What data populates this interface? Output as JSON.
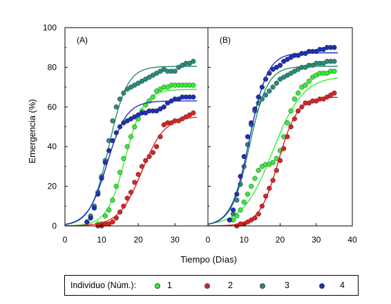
{
  "chart_data": {
    "type": "scatter",
    "xlabel": "Tiempo (Días)",
    "ylabel": "Emergencia (%)",
    "xlim": [
      0,
      40
    ],
    "ylim": [
      0,
      100
    ],
    "xticks": [
      0,
      10,
      20,
      30,
      40
    ],
    "yticks": [
      0,
      20,
      40,
      60,
      80,
      100
    ],
    "grid": false,
    "panels": [
      {
        "label": "(A)",
        "series": [
          {
            "name": "1",
            "color": "#33ee33",
            "x": [
              9,
              10,
              11,
              12,
              13,
              14,
              15,
              16,
              17,
              18,
              19,
              20,
              21,
              22,
              23,
              24,
              25,
              26,
              27,
              28,
              29,
              30,
              31,
              32,
              33,
              34,
              35
            ],
            "y": [
              1,
              1,
              5,
              8,
              13,
              20,
              27,
              34,
              40,
              45,
              50,
              54,
              58,
              61,
              63,
              65,
              68,
              69,
              70,
              70,
              71,
              71,
              71,
              71,
              71,
              71,
              71
            ]
          },
          {
            "name": "2",
            "color": "#dd2222",
            "x": [
              9,
              10,
              11,
              12,
              13,
              14,
              15,
              16,
              17,
              18,
              19,
              20,
              21,
              22,
              23,
              24,
              25,
              26,
              27,
              28,
              29,
              30,
              31,
              32,
              33,
              34,
              35
            ],
            "y": [
              0,
              0,
              1,
              1,
              2,
              4,
              7,
              10,
              14,
              17,
              22,
              26,
              30,
              33,
              35,
              37,
              40,
              45,
              51,
              52,
              52,
              53,
              53,
              54,
              55,
              56,
              57
            ]
          },
          {
            "name": "3",
            "color": "#2a8a7a",
            "x": [
              6,
              7,
              8,
              9,
              10,
              11,
              12,
              13,
              14,
              15,
              16,
              17,
              18,
              19,
              20,
              21,
              22,
              23,
              24,
              25,
              26,
              27,
              28,
              29,
              30,
              31,
              32,
              33,
              34,
              35
            ],
            "y": [
              2,
              5,
              10,
              17,
              25,
              33,
              43,
              53,
              60,
              64,
              67,
              69,
              70,
              71,
              72,
              73,
              74,
              75,
              76,
              77,
              78,
              79,
              78,
              78,
              78,
              80,
              81,
              82,
              82,
              83
            ]
          },
          {
            "name": "4",
            "color": "#1c2fb8",
            "x": [
              6,
              7,
              8,
              9,
              10,
              11,
              12,
              13,
              14,
              15,
              16,
              17,
              18,
              19,
              20,
              21,
              22,
              23,
              24,
              25,
              26,
              27,
              28,
              29,
              30,
              31,
              32,
              33,
              34,
              35
            ],
            "y": [
              2,
              4,
              9,
              16,
              24,
              32,
              38,
              43,
              47,
              50,
              52,
              53,
              54,
              55,
              56,
              57,
              57,
              58,
              58,
              58,
              59,
              60,
              62,
              63,
              64,
              64,
              65,
              65,
              65,
              65
            ]
          }
        ]
      },
      {
        "label": "(B)",
        "series": [
          {
            "name": "1",
            "color": "#33ee33",
            "x": [
              7,
              8,
              9,
              10,
              11,
              12,
              13,
              14,
              15,
              16,
              17,
              18,
              19,
              20,
              21,
              22,
              23,
              24,
              25,
              26,
              27,
              28,
              29,
              30,
              31,
              32,
              33,
              34,
              35
            ],
            "y": [
              3,
              5,
              8,
              12,
              16,
              20,
              24,
              28,
              30,
              31,
              31,
              32,
              34,
              38,
              45,
              52,
              58,
              64,
              67,
              70,
              71,
              73,
              75,
              76,
              77,
              77,
              77,
              78,
              78
            ]
          },
          {
            "name": "2",
            "color": "#dd2222",
            "x": [
              8,
              9,
              10,
              11,
              12,
              13,
              14,
              15,
              16,
              17,
              18,
              19,
              20,
              21,
              22,
              23,
              24,
              25,
              26,
              27,
              28,
              29,
              30,
              31,
              32,
              33,
              34,
              35
            ],
            "y": [
              0,
              1,
              1,
              2,
              3,
              4,
              6,
              10,
              15,
              19,
              23,
              28,
              33,
              39,
              45,
              50,
              54,
              58,
              60,
              62,
              62,
              63,
              63,
              64,
              64,
              65,
              66,
              67
            ]
          },
          {
            "name": "3",
            "color": "#2a8a7a",
            "x": [
              6,
              7,
              8,
              9,
              10,
              11,
              12,
              13,
              14,
              15,
              16,
              17,
              18,
              19,
              20,
              21,
              22,
              23,
              24,
              25,
              26,
              27,
              28,
              29,
              30,
              31,
              32,
              33,
              34,
              35
            ],
            "y": [
              3,
              6,
              13,
              21,
              30,
              41,
              51,
              58,
              62,
              64,
              66,
              68,
              70,
              72,
              74,
              75,
              76,
              77,
              78,
              79,
              80,
              80,
              81,
              81,
              82,
              82,
              82,
              83,
              83,
              83
            ]
          },
          {
            "name": "4",
            "color": "#1c2fb8",
            "x": [
              6,
              7,
              8,
              9,
              10,
              11,
              12,
              13,
              14,
              15,
              16,
              17,
              18,
              19,
              20,
              21,
              22,
              23,
              24,
              25,
              26,
              27,
              28,
              29,
              30,
              31,
              32,
              33,
              34,
              35
            ],
            "y": [
              3,
              8,
              16,
              25,
              35,
              45,
              52,
              59,
              65,
              70,
              74,
              77,
              79,
              80,
              81,
              83,
              84,
              85,
              86,
              86,
              87,
              87,
              88,
              88,
              88,
              89,
              89,
              90,
              90,
              90
            ]
          }
        ]
      }
    ],
    "legend": {
      "title": "Individuo (Núm.):",
      "entries": [
        "1",
        "2",
        "3",
        "4"
      ],
      "placement": "bottom"
    }
  }
}
